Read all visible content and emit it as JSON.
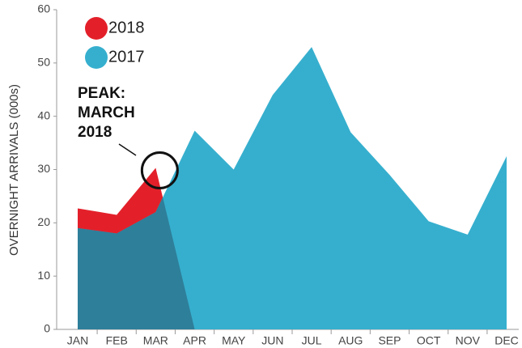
{
  "chart_data": {
    "type": "area",
    "y_label": "OVERNIGHT ARRIVALS (000s)",
    "categories": [
      "JAN",
      "FEB",
      "MAR",
      "APR",
      "MAY",
      "JUN",
      "JUL",
      "AUG",
      "SEP",
      "OCT",
      "NOV",
      "DEC"
    ],
    "series": [
      {
        "name": "2018",
        "color": "#e3202a",
        "values": [
          22.7,
          21.5,
          30.3,
          0,
          null,
          null,
          null,
          null,
          null,
          null,
          null,
          null
        ]
      },
      {
        "name": "2017",
        "color": "#36afce",
        "values": [
          19,
          18,
          22,
          37.3,
          30,
          44,
          53,
          37,
          29,
          20.3,
          17.8,
          32.5
        ]
      }
    ],
    "overlap_color": "#2e7f9a",
    "ylim": [
      0,
      60
    ],
    "yticks": [
      0,
      10,
      20,
      30,
      40,
      50,
      60
    ],
    "annotation": {
      "lines": [
        "PEAK:",
        "MARCH",
        "2018"
      ]
    }
  }
}
